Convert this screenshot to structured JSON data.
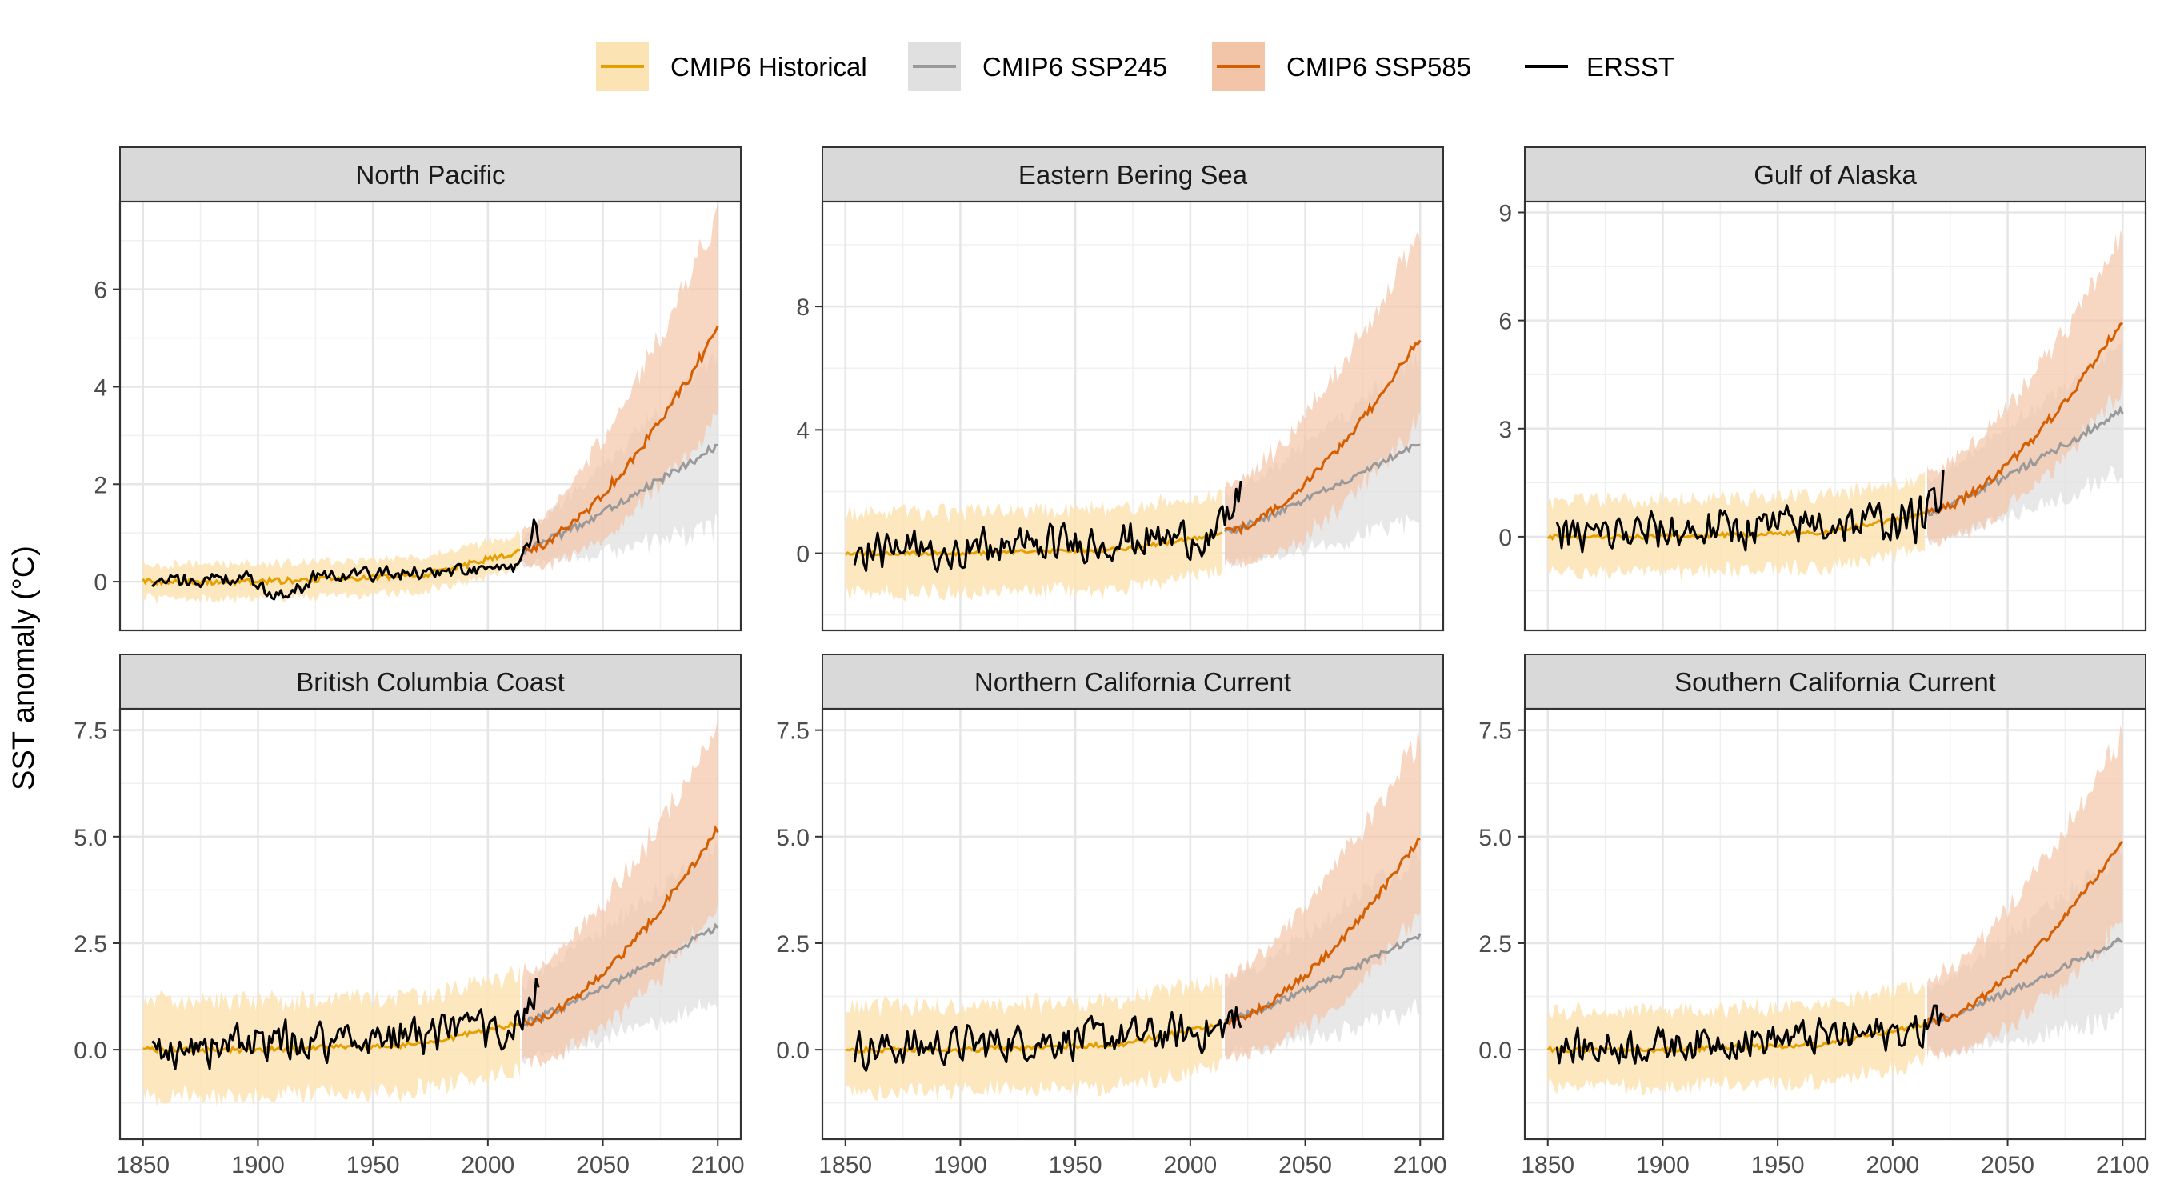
{
  "chart_data": {
    "type": "line",
    "ylabel": "SST anomaly (°C)",
    "xlabel": "",
    "legend_position": "top",
    "grid": true,
    "x_ticks": [
      1850,
      1900,
      1950,
      2000,
      2050,
      2100
    ],
    "xlim": [
      1840,
      2110
    ],
    "series_meta": [
      {
        "name": "CMIP6 Historical",
        "color": "#E69F00",
        "band_color": "#FBE3B4"
      },
      {
        "name": "CMIP6 SSP245",
        "color": "#999999",
        "band_color": "#E0E0E0"
      },
      {
        "name": "CMIP6 SSP585",
        "color": "#D55E00",
        "band_color": "#F3C5A8"
      },
      {
        "name": "ERSST",
        "color": "#000000",
        "band_color": ""
      }
    ],
    "panels": [
      {
        "title": "North Pacific",
        "ylim": [
          -1.0,
          7.8
        ],
        "y_ticks": [
          0,
          2,
          4,
          6
        ],
        "y_labels": [
          "0",
          "2",
          "4",
          "6"
        ],
        "hist_spread": 0.35,
        "ssp_spread_end": 2.2,
        "ssp245_end": 2.8,
        "ssp585_end": 5.2,
        "obs_amp": 0.18,
        "obs_trend": 0.28,
        "obs_dip": -0.35,
        "obs_end": 1.1,
        "seed": 3
      },
      {
        "title": "Eastern Bering Sea",
        "ylim": [
          -2.5,
          11.4
        ],
        "y_ticks": [
          0,
          4,
          8
        ],
        "y_labels": [
          "0",
          "4",
          "8"
        ],
        "hist_spread": 1.3,
        "ssp_spread_end": 3.3,
        "ssp245_end": 3.6,
        "ssp585_end": 7.0,
        "obs_amp": 0.75,
        "obs_trend": 0.6,
        "obs_dip": 0.0,
        "obs_end": 2.0,
        "seed": 7
      },
      {
        "title": "Gulf of Alaska",
        "ylim": [
          -2.6,
          9.3
        ],
        "y_ticks": [
          0,
          3,
          6,
          9
        ],
        "y_labels": [
          "0",
          "3",
          "6",
          "9"
        ],
        "hist_spread": 1.0,
        "ssp_spread_end": 2.3,
        "ssp245_end": 3.5,
        "ssp585_end": 6.0,
        "obs_amp": 0.7,
        "obs_trend": 0.5,
        "obs_dip": 0.0,
        "obs_end": 1.6,
        "seed": 11
      },
      {
        "title": "British Columbia Coast",
        "ylim": [
          -2.1,
          8.0
        ],
        "y_ticks": [
          0,
          2.5,
          5,
          7.5
        ],
        "y_labels": [
          "0.0",
          "2.5",
          "5.0",
          "7.5"
        ],
        "hist_spread": 1.1,
        "ssp_spread_end": 2.3,
        "ssp245_end": 2.9,
        "ssp585_end": 5.2,
        "obs_amp": 0.55,
        "obs_trend": 0.5,
        "obs_dip": 0.0,
        "obs_end": 1.3,
        "seed": 17
      },
      {
        "title": "Northern California Current",
        "ylim": [
          -2.1,
          8.0
        ],
        "y_ticks": [
          0,
          2.5,
          5,
          7.5
        ],
        "y_labels": [
          "0.0",
          "2.5",
          "5.0",
          "7.5"
        ],
        "hist_spread": 1.0,
        "ssp_spread_end": 2.3,
        "ssp245_end": 2.7,
        "ssp585_end": 5.0,
        "obs_amp": 0.55,
        "obs_trend": 0.45,
        "obs_dip": 0.0,
        "obs_end": 1.0,
        "seed": 23
      },
      {
        "title": "Southern California Current",
        "ylim": [
          -2.1,
          8.0
        ],
        "y_ticks": [
          0,
          2.5,
          5,
          7.5
        ],
        "y_labels": [
          "0.0",
          "2.5",
          "5.0",
          "7.5"
        ],
        "hist_spread": 0.9,
        "ssp_spread_end": 2.4,
        "ssp245_end": 2.6,
        "ssp585_end": 4.9,
        "obs_amp": 0.5,
        "obs_trend": 0.45,
        "obs_dip": 0.0,
        "obs_end": 1.0,
        "seed": 31
      }
    ]
  }
}
